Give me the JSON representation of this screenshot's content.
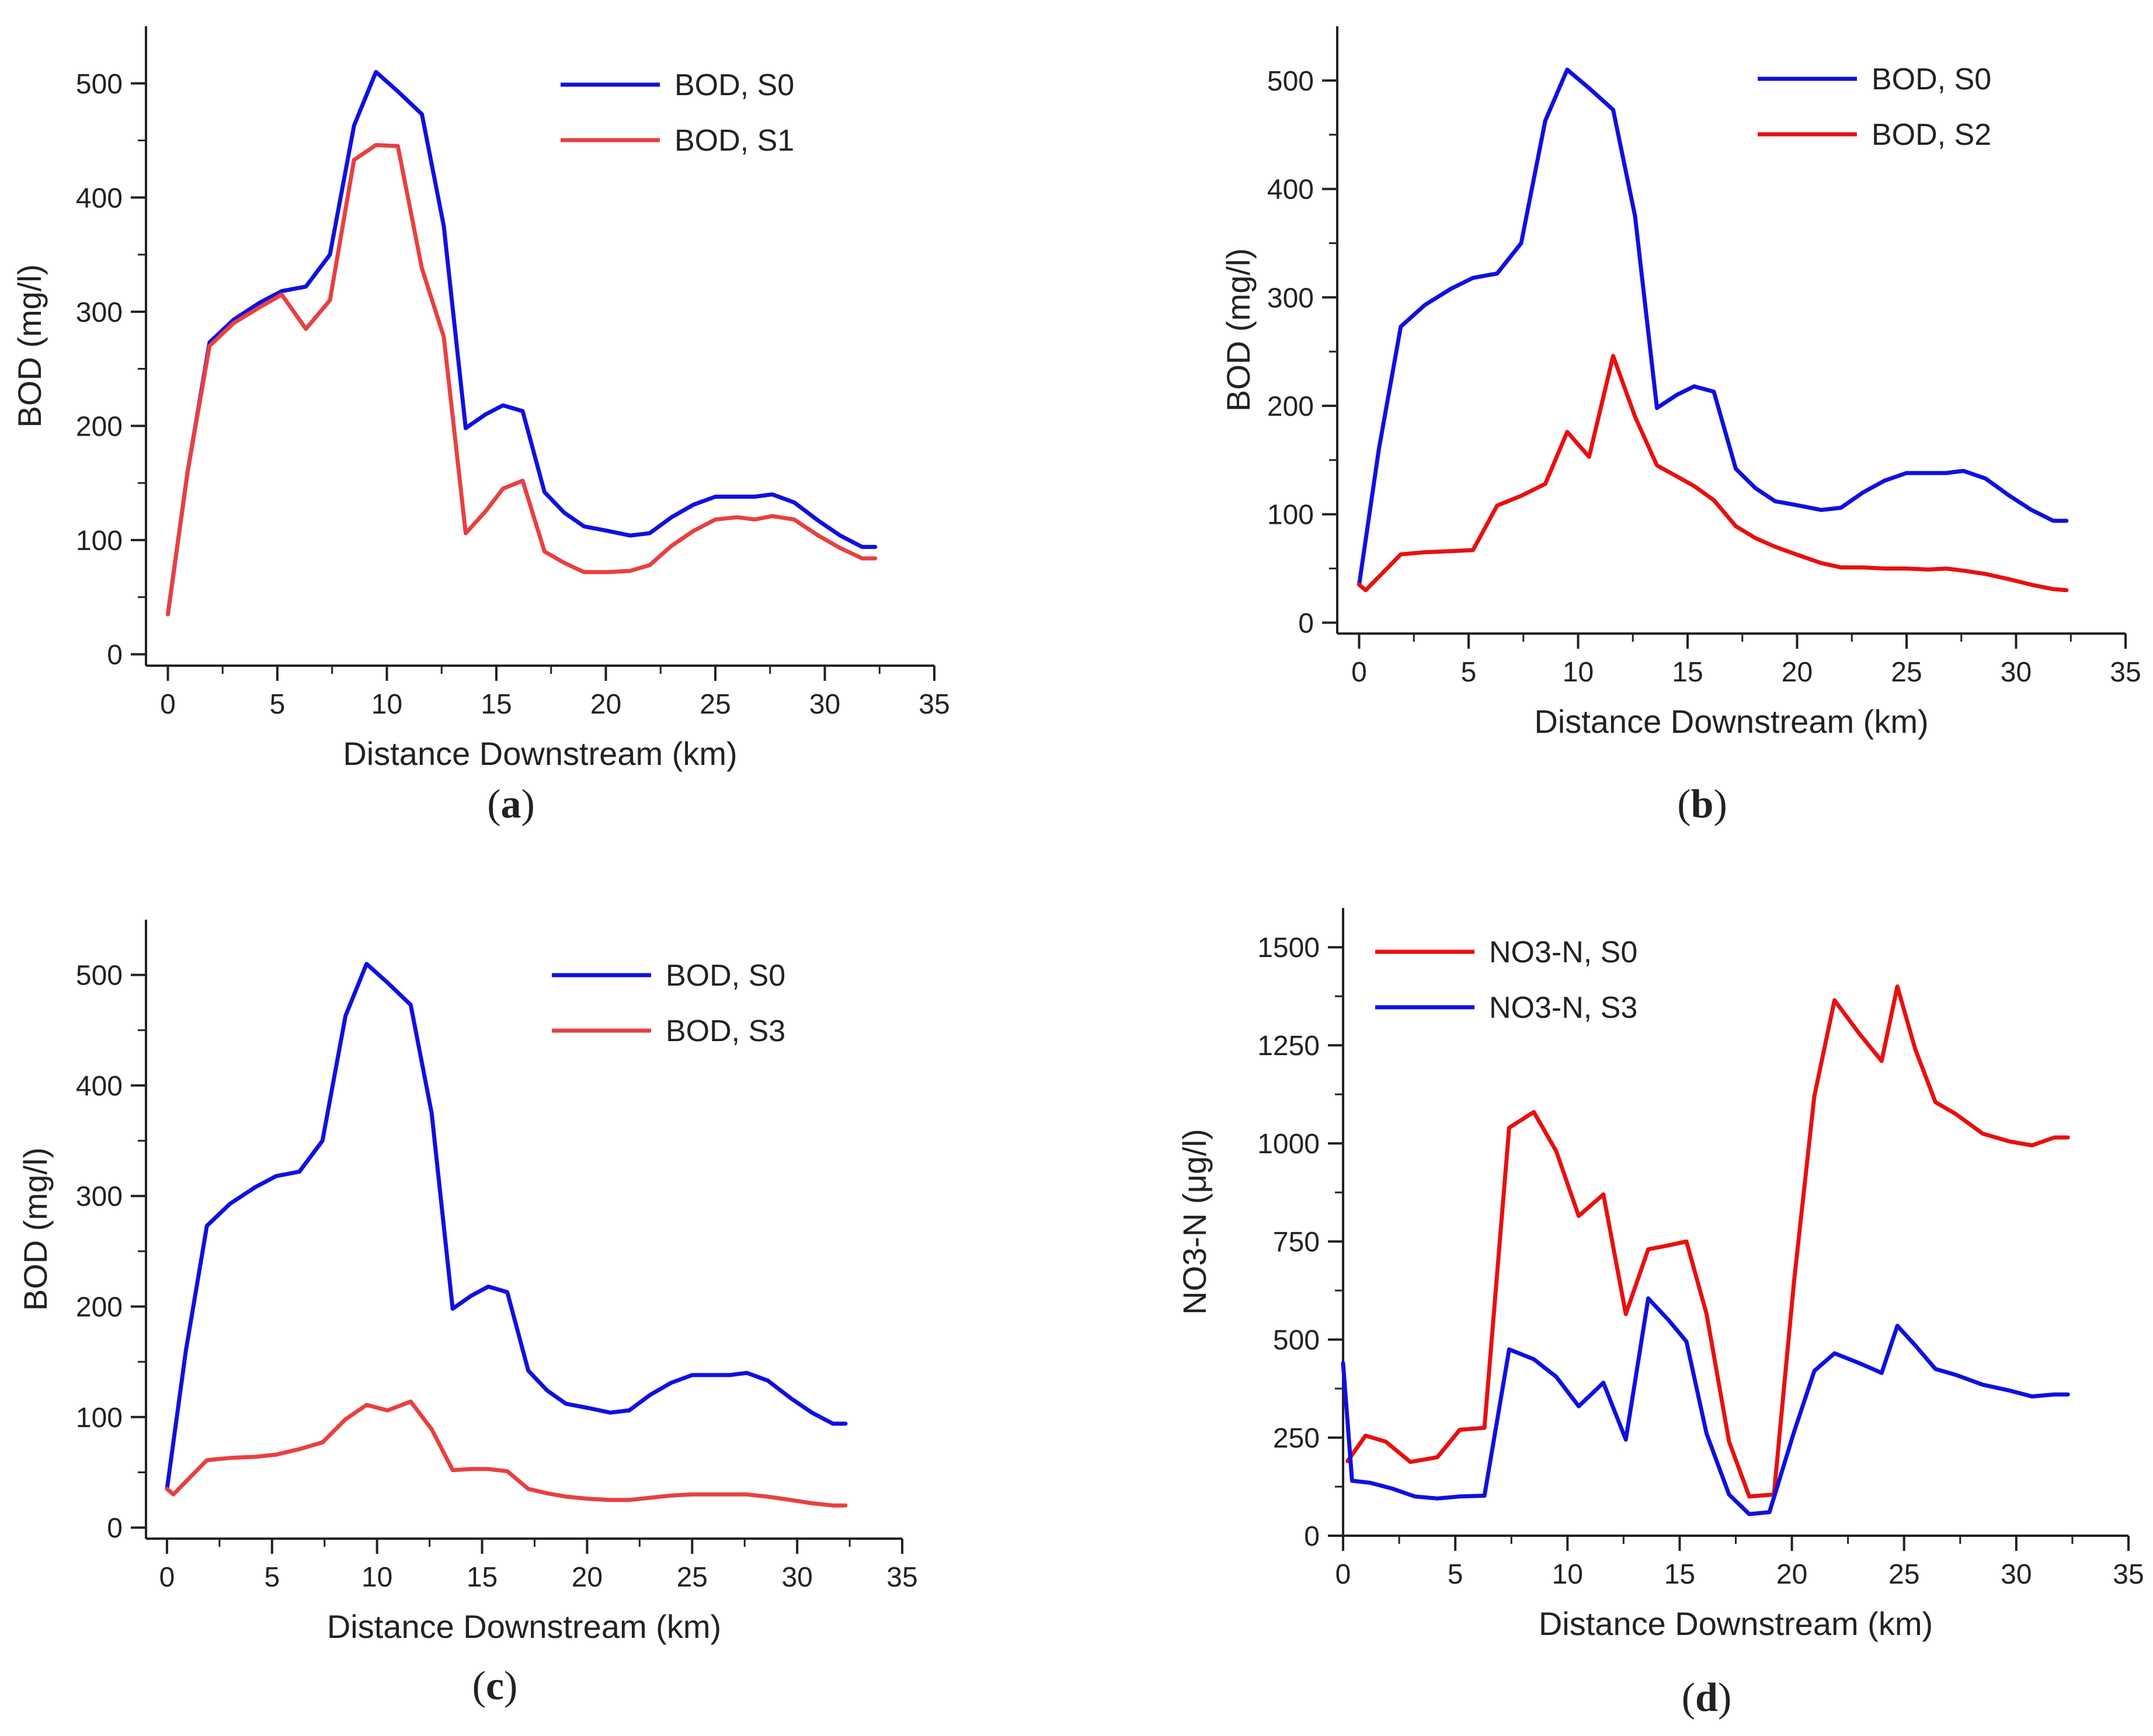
{
  "chart_data": [
    {
      "type": "line",
      "panel_label": "a",
      "xlabel": "Distance Downstream (km)",
      "ylabel": "BOD (mg/l)",
      "xlim": [
        -1,
        35
      ],
      "ylim": [
        -10,
        550
      ],
      "xticks": [
        0,
        5,
        10,
        15,
        20,
        25,
        30,
        35
      ],
      "yticks": [
        0,
        100,
        200,
        300,
        400,
        500
      ],
      "legend_position": "top-right",
      "series": [
        {
          "name": "BOD, S0",
          "color": "#1010e0",
          "x": [
            0,
            0.9,
            1.9,
            3,
            4.2,
            5.2,
            6.3,
            7.4,
            8.5,
            9.5,
            10.5,
            11.6,
            12.6,
            13.6,
            14.5,
            15.3,
            16.2,
            17.2,
            18.1,
            19,
            20.1,
            21.1,
            22,
            23,
            24,
            25,
            26,
            26.8,
            27.6,
            28.6,
            29.7,
            30.7,
            31.7,
            32.3
          ],
          "y": [
            35,
            160,
            273,
            293,
            308,
            318,
            322,
            350,
            463,
            510,
            493,
            473,
            375,
            198,
            210,
            218,
            213,
            142,
            124,
            112,
            108,
            104,
            106,
            120,
            131,
            138,
            138,
            138,
            140,
            133,
            117,
            104,
            94,
            94
          ]
        },
        {
          "name": "BOD, S1",
          "color": "#e84040",
          "x": [
            0,
            0.9,
            1.9,
            3,
            4.2,
            5.2,
            6.3,
            7.4,
            8.5,
            9.5,
            10.5,
            11.6,
            12.6,
            13.6,
            14.5,
            15.3,
            16.2,
            17.2,
            18.1,
            19,
            20.1,
            21.1,
            22,
            23,
            24,
            25,
            26,
            26.8,
            27.6,
            28.6,
            29.7,
            30.7,
            31.7,
            32.3
          ],
          "y": [
            35,
            160,
            270,
            290,
            304,
            315,
            285,
            310,
            433,
            446,
            445,
            338,
            278,
            106,
            125,
            145,
            152,
            90,
            80,
            72,
            72,
            73,
            78,
            95,
            108,
            118,
            120,
            118,
            121,
            118,
            104,
            93,
            84,
            84
          ]
        }
      ]
    },
    {
      "type": "line",
      "panel_label": "b",
      "xlabel": "Distance Downstream (km)",
      "ylabel": "BOD (mg/l)",
      "xlim": [
        -1,
        35
      ],
      "ylim": [
        -10,
        550
      ],
      "xticks": [
        0,
        5,
        10,
        15,
        20,
        25,
        30,
        35
      ],
      "yticks": [
        0,
        100,
        200,
        300,
        400,
        500
      ],
      "legend_position": "top-right",
      "series": [
        {
          "name": "BOD, S0",
          "color": "#1010e0",
          "x": [
            0,
            0.9,
            1.9,
            3,
            4.2,
            5.2,
            6.3,
            7.4,
            8.5,
            9.5,
            10.5,
            11.6,
            12.6,
            13.6,
            14.5,
            15.3,
            16.2,
            17.2,
            18.1,
            19,
            20.1,
            21.1,
            22,
            23,
            24,
            25,
            26,
            26.8,
            27.6,
            28.6,
            29.7,
            30.7,
            31.7,
            32.3
          ],
          "y": [
            35,
            160,
            273,
            293,
            308,
            318,
            322,
            350,
            463,
            510,
            493,
            473,
            375,
            198,
            210,
            218,
            213,
            142,
            124,
            112,
            108,
            104,
            106,
            120,
            131,
            138,
            138,
            138,
            140,
            133,
            117,
            104,
            94,
            94
          ]
        },
        {
          "name": "BOD, S2",
          "color": "#e81010",
          "x": [
            0,
            0.3,
            1.9,
            3,
            4.2,
            5.2,
            6.3,
            7.4,
            8.5,
            9.5,
            10.5,
            11.6,
            12.6,
            13.6,
            14.5,
            15.3,
            16.2,
            17.2,
            18.1,
            19,
            20.1,
            21.1,
            22,
            23,
            24,
            25,
            26,
            26.8,
            27.6,
            28.6,
            29.7,
            30.7,
            31.7,
            32.3
          ],
          "y": [
            35,
            30,
            63,
            65,
            66,
            67,
            108,
            117,
            128,
            176,
            153,
            246,
            190,
            145,
            135,
            126,
            113,
            89,
            78,
            70,
            62,
            55,
            51,
            51,
            50,
            50,
            49,
            50,
            48,
            45,
            40,
            35,
            31,
            30
          ]
        }
      ]
    },
    {
      "type": "line",
      "panel_label": "c",
      "xlabel": "Distance Downstream (km)",
      "ylabel": "BOD (mg/l)",
      "xlim": [
        -1,
        35
      ],
      "ylim": [
        -10,
        550
      ],
      "xticks": [
        0,
        5,
        10,
        15,
        20,
        25,
        30,
        35
      ],
      "yticks": [
        0,
        100,
        200,
        300,
        400,
        500
      ],
      "legend_position": "top-right",
      "series": [
        {
          "name": "BOD, S0",
          "color": "#1010e0",
          "x": [
            0,
            0.9,
            1.9,
            3,
            4.2,
            5.2,
            6.3,
            7.4,
            8.5,
            9.5,
            10.5,
            11.6,
            12.6,
            13.6,
            14.5,
            15.3,
            16.2,
            17.2,
            18.1,
            19,
            20.1,
            21.1,
            22,
            23,
            24,
            25,
            26,
            26.8,
            27.6,
            28.6,
            29.7,
            30.7,
            31.7,
            32.3
          ],
          "y": [
            35,
            160,
            273,
            293,
            308,
            318,
            322,
            350,
            463,
            510,
            493,
            473,
            375,
            198,
            210,
            218,
            213,
            142,
            124,
            112,
            108,
            104,
            106,
            120,
            131,
            138,
            138,
            138,
            140,
            133,
            117,
            104,
            94,
            94
          ]
        },
        {
          "name": "BOD, S3",
          "color": "#e84040",
          "x": [
            0,
            0.3,
            1.9,
            3,
            4.2,
            5.2,
            6.3,
            7.4,
            8.5,
            9.5,
            10.5,
            11.6,
            12.6,
            13.6,
            14.5,
            15.3,
            16.2,
            17.2,
            18.1,
            19,
            20.1,
            21.1,
            22,
            23,
            24,
            25,
            26,
            26.8,
            27.6,
            28.6,
            29.7,
            30.7,
            31.7,
            32.3
          ],
          "y": [
            35,
            30,
            61,
            63,
            64,
            66,
            71,
            77,
            98,
            111,
            106,
            114,
            89,
            52,
            53,
            53,
            51,
            35,
            31,
            28,
            26,
            25,
            25,
            27,
            29,
            30,
            30,
            30,
            30,
            28,
            25,
            22,
            20,
            20
          ]
        }
      ]
    },
    {
      "type": "line",
      "panel_label": "d",
      "xlabel": "Distance Downstream (km)",
      "ylabel": "NO3-N (μg/l)",
      "xlim": [
        0,
        35
      ],
      "ylim": [
        0,
        1600
      ],
      "xticks": [
        0,
        5,
        10,
        15,
        20,
        25,
        30,
        35
      ],
      "yticks": [
        0,
        250,
        500,
        750,
        1000,
        1250,
        1500
      ],
      "legend_position": "top-left",
      "series": [
        {
          "name": "NO3-N, S0",
          "color": "#e81010",
          "x": [
            0.2,
            1,
            1.9,
            3,
            4.2,
            5.2,
            6.3,
            7.4,
            8.5,
            9.5,
            10.5,
            11.6,
            12.6,
            13.6,
            14.5,
            15.3,
            16.2,
            17.2,
            18.1,
            19.2,
            20.1,
            21,
            21.9,
            23,
            24,
            24.7,
            25.5,
            26.4,
            27.3,
            28.5,
            29.7,
            30.7,
            31.7,
            32.3
          ],
          "y": [
            190,
            255,
            240,
            188,
            200,
            270,
            275,
            1040,
            1080,
            980,
            815,
            870,
            565,
            730,
            740,
            750,
            565,
            240,
            100,
            105,
            650,
            1120,
            1365,
            1280,
            1210,
            1400,
            1240,
            1105,
            1075,
            1025,
            1005,
            995,
            1015,
            1015
          ]
        },
        {
          "name": "NO3-N, S3",
          "color": "#1010e0",
          "x": [
            0,
            0.4,
            1.2,
            2.2,
            3.2,
            4.2,
            5.2,
            6.3,
            7.4,
            8.5,
            9.5,
            10.5,
            11.6,
            12.6,
            13.6,
            14.5,
            15.3,
            16.2,
            17.2,
            18.1,
            19,
            20.1,
            21,
            21.9,
            23,
            24,
            24.7,
            25.5,
            26.4,
            27.3,
            28.5,
            29.7,
            30.7,
            31.7,
            32.3
          ],
          "y": [
            440,
            140,
            135,
            120,
            100,
            95,
            100,
            102,
            475,
            450,
            405,
            330,
            390,
            245,
            605,
            550,
            495,
            260,
            105,
            55,
            60,
            265,
            420,
            465,
            440,
            415,
            535,
            485,
            425,
            410,
            385,
            370,
            355,
            360,
            360
          ]
        }
      ]
    }
  ]
}
